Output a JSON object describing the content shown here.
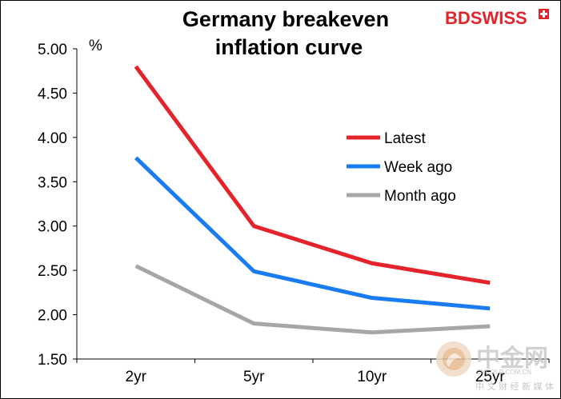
{
  "brand": {
    "logo_text": "BDSWISS",
    "logo_bd": "BD",
    "logo_swiss": "SWISS",
    "logo_color": "#e3242b"
  },
  "watermark": {
    "cn_text": "中金网",
    "url_text": "CNGOLD.COM.CN",
    "sub_text": "中 文 财 经 新 媒 体"
  },
  "chart_data": {
    "type": "line",
    "title_lines": [
      "Germany breakeven",
      "inflation curve"
    ],
    "unit": "%",
    "categories": [
      "2yr",
      "5yr",
      "10yr",
      "25yr"
    ],
    "ylim": [
      1.5,
      5.0
    ],
    "yticks": [
      "5.00",
      "4.50",
      "4.00",
      "3.50",
      "3.00",
      "2.50",
      "2.00",
      "1.50"
    ],
    "ytick_values": [
      5.0,
      4.5,
      4.0,
      3.5,
      3.0,
      2.5,
      2.0,
      1.5
    ],
    "grid": false,
    "legend_position": "right-center",
    "series": [
      {
        "name": "Latest",
        "color": "#e3242b",
        "values": [
          4.8,
          3.0,
          2.58,
          2.36
        ]
      },
      {
        "name": "Week ago",
        "color": "#1a7cf2",
        "values": [
          3.77,
          2.49,
          2.19,
          2.07
        ]
      },
      {
        "name": "Month ago",
        "color": "#a6a6a6",
        "values": [
          2.55,
          1.9,
          1.8,
          1.87
        ]
      }
    ]
  }
}
